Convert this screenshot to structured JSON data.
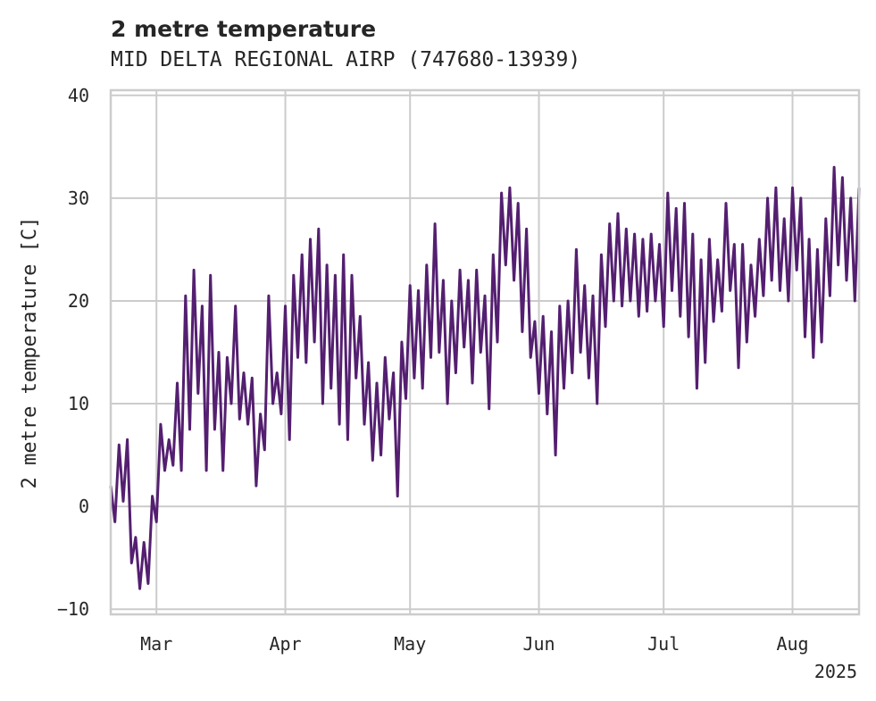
{
  "chart_data": {
    "type": "line",
    "title": "2 metre temperature",
    "subtitle": "MID DELTA REGIONAL AIRP (747680-13939)",
    "xlabel": "",
    "ylabel": "2 metre temperature [C]",
    "xlim": [
      "2025-02-18",
      "2025-08-17"
    ],
    "ylim": [
      -10.5,
      40.5
    ],
    "y_ticks": [
      -10,
      0,
      10,
      20,
      30,
      40
    ],
    "x_ticks": [
      {
        "date": "2025-03-01",
        "label": "Mar"
      },
      {
        "date": "2025-04-01",
        "label": "Apr"
      },
      {
        "date": "2025-05-01",
        "label": "May"
      },
      {
        "date": "2025-06-01",
        "label": "Jun"
      },
      {
        "date": "2025-07-01",
        "label": "Jul"
      },
      {
        "date": "2025-08-01",
        "label": "Aug"
      }
    ],
    "x_offset_label": "2025",
    "grid": true,
    "series": [
      {
        "color": "#541f70",
        "points": [
          [
            "2025-02-18",
            2
          ],
          [
            "2025-02-19",
            -1.5
          ],
          [
            "2025-02-20",
            6
          ],
          [
            "2025-02-21",
            0.5
          ],
          [
            "2025-02-22",
            6.5
          ],
          [
            "2025-02-23",
            -5.5
          ],
          [
            "2025-02-24",
            -3
          ],
          [
            "2025-02-25",
            -8
          ],
          [
            "2025-02-26",
            -3.5
          ],
          [
            "2025-02-27",
            -7.5
          ],
          [
            "2025-02-28",
            1
          ],
          [
            "2025-03-01",
            -1.5
          ],
          [
            "2025-03-02",
            8
          ],
          [
            "2025-03-03",
            3.5
          ],
          [
            "2025-03-04",
            6.5
          ],
          [
            "2025-03-05",
            4
          ],
          [
            "2025-03-06",
            12
          ],
          [
            "2025-03-07",
            3.5
          ],
          [
            "2025-03-08",
            20.5
          ],
          [
            "2025-03-09",
            7.5
          ],
          [
            "2025-03-10",
            23
          ],
          [
            "2025-03-11",
            11
          ],
          [
            "2025-03-12",
            19.5
          ],
          [
            "2025-03-13",
            3.5
          ],
          [
            "2025-03-14",
            22.5
          ],
          [
            "2025-03-15",
            7.5
          ],
          [
            "2025-03-16",
            15
          ],
          [
            "2025-03-17",
            3.5
          ],
          [
            "2025-03-18",
            14.5
          ],
          [
            "2025-03-19",
            10
          ],
          [
            "2025-03-20",
            19.5
          ],
          [
            "2025-03-21",
            8.5
          ],
          [
            "2025-03-22",
            13
          ],
          [
            "2025-03-23",
            8
          ],
          [
            "2025-03-24",
            12.5
          ],
          [
            "2025-03-25",
            2
          ],
          [
            "2025-03-26",
            9
          ],
          [
            "2025-03-27",
            5.5
          ],
          [
            "2025-03-28",
            20.5
          ],
          [
            "2025-03-29",
            10
          ],
          [
            "2025-03-30",
            13
          ],
          [
            "2025-03-31",
            9
          ],
          [
            "2025-04-01",
            19.5
          ],
          [
            "2025-04-02",
            6.5
          ],
          [
            "2025-04-03",
            22.5
          ],
          [
            "2025-04-04",
            14.5
          ],
          [
            "2025-04-05",
            24.5
          ],
          [
            "2025-04-06",
            14
          ],
          [
            "2025-04-07",
            26
          ],
          [
            "2025-04-08",
            16
          ],
          [
            "2025-04-09",
            27
          ],
          [
            "2025-04-10",
            10
          ],
          [
            "2025-04-11",
            23.5
          ],
          [
            "2025-04-12",
            11.5
          ],
          [
            "2025-04-13",
            22.5
          ],
          [
            "2025-04-14",
            8
          ],
          [
            "2025-04-15",
            24.5
          ],
          [
            "2025-04-16",
            6.5
          ],
          [
            "2025-04-17",
            22.5
          ],
          [
            "2025-04-18",
            12.5
          ],
          [
            "2025-04-19",
            18.5
          ],
          [
            "2025-04-20",
            8
          ],
          [
            "2025-04-21",
            14
          ],
          [
            "2025-04-22",
            4.5
          ],
          [
            "2025-04-23",
            12
          ],
          [
            "2025-04-24",
            5
          ],
          [
            "2025-04-25",
            14.5
          ],
          [
            "2025-04-26",
            8.5
          ],
          [
            "2025-04-27",
            13
          ],
          [
            "2025-04-28",
            1
          ],
          [
            "2025-04-29",
            16
          ],
          [
            "2025-04-30",
            10.5
          ],
          [
            "2025-05-01",
            21.5
          ],
          [
            "2025-05-02",
            12.5
          ],
          [
            "2025-05-03",
            21
          ],
          [
            "2025-05-04",
            11.5
          ],
          [
            "2025-05-05",
            23.5
          ],
          [
            "2025-05-06",
            14.5
          ],
          [
            "2025-05-07",
            27.5
          ],
          [
            "2025-05-08",
            15
          ],
          [
            "2025-05-09",
            22
          ],
          [
            "2025-05-10",
            10
          ],
          [
            "2025-05-11",
            20
          ],
          [
            "2025-05-12",
            13
          ],
          [
            "2025-05-13",
            23
          ],
          [
            "2025-05-14",
            15.5
          ],
          [
            "2025-05-15",
            22
          ],
          [
            "2025-05-16",
            12
          ],
          [
            "2025-05-17",
            23
          ],
          [
            "2025-05-18",
            15
          ],
          [
            "2025-05-19",
            20.5
          ],
          [
            "2025-05-20",
            9.5
          ],
          [
            "2025-05-21",
            24.5
          ],
          [
            "2025-05-22",
            16
          ],
          [
            "2025-05-23",
            30.5
          ],
          [
            "2025-05-24",
            23.5
          ],
          [
            "2025-05-25",
            31
          ],
          [
            "2025-05-26",
            22
          ],
          [
            "2025-05-27",
            29.5
          ],
          [
            "2025-05-28",
            17
          ],
          [
            "2025-05-29",
            27
          ],
          [
            "2025-05-30",
            14.5
          ],
          [
            "2025-05-31",
            18
          ],
          [
            "2025-06-01",
            11
          ],
          [
            "2025-06-02",
            18.5
          ],
          [
            "2025-06-03",
            9
          ],
          [
            "2025-06-04",
            17
          ],
          [
            "2025-06-05",
            5
          ],
          [
            "2025-06-06",
            19.5
          ],
          [
            "2025-06-07",
            11.5
          ],
          [
            "2025-06-08",
            20
          ],
          [
            "2025-06-09",
            13
          ],
          [
            "2025-06-10",
            25
          ],
          [
            "2025-06-11",
            15
          ],
          [
            "2025-06-12",
            21.5
          ],
          [
            "2025-06-13",
            12.5
          ],
          [
            "2025-06-14",
            20.5
          ],
          [
            "2025-06-15",
            10
          ],
          [
            "2025-06-16",
            24.5
          ],
          [
            "2025-06-17",
            17.5
          ],
          [
            "2025-06-18",
            27.5
          ],
          [
            "2025-06-19",
            20
          ],
          [
            "2025-06-20",
            28.5
          ],
          [
            "2025-06-21",
            19.5
          ],
          [
            "2025-06-22",
            27
          ],
          [
            "2025-06-23",
            20
          ],
          [
            "2025-06-24",
            26.5
          ],
          [
            "2025-06-25",
            18.5
          ],
          [
            "2025-06-26",
            26
          ],
          [
            "2025-06-27",
            19
          ],
          [
            "2025-06-28",
            26.5
          ],
          [
            "2025-06-29",
            20
          ],
          [
            "2025-06-30",
            25.5
          ],
          [
            "2025-07-01",
            17.5
          ],
          [
            "2025-07-02",
            30.5
          ],
          [
            "2025-07-03",
            21
          ],
          [
            "2025-07-04",
            29
          ],
          [
            "2025-07-05",
            18.5
          ],
          [
            "2025-07-06",
            29.5
          ],
          [
            "2025-07-07",
            16.5
          ],
          [
            "2025-07-08",
            26.5
          ],
          [
            "2025-07-09",
            11.5
          ],
          [
            "2025-07-10",
            24
          ],
          [
            "2025-07-11",
            14
          ],
          [
            "2025-07-12",
            26
          ],
          [
            "2025-07-13",
            18
          ],
          [
            "2025-07-14",
            24
          ],
          [
            "2025-07-15",
            19
          ],
          [
            "2025-07-16",
            29.5
          ],
          [
            "2025-07-17",
            21
          ],
          [
            "2025-07-18",
            25.5
          ],
          [
            "2025-07-19",
            13.5
          ],
          [
            "2025-07-20",
            25.5
          ],
          [
            "2025-07-21",
            16
          ],
          [
            "2025-07-22",
            23.5
          ],
          [
            "2025-07-23",
            18.5
          ],
          [
            "2025-07-24",
            26
          ],
          [
            "2025-07-25",
            20.5
          ],
          [
            "2025-07-26",
            30
          ],
          [
            "2025-07-27",
            22
          ],
          [
            "2025-07-28",
            31
          ],
          [
            "2025-07-29",
            21
          ],
          [
            "2025-07-30",
            28
          ],
          [
            "2025-07-31",
            20
          ],
          [
            "2025-08-01",
            31
          ],
          [
            "2025-08-02",
            23
          ],
          [
            "2025-08-03",
            30
          ],
          [
            "2025-08-04",
            16.5
          ],
          [
            "2025-08-05",
            26
          ],
          [
            "2025-08-06",
            14.5
          ],
          [
            "2025-08-07",
            25
          ],
          [
            "2025-08-08",
            16
          ],
          [
            "2025-08-09",
            28
          ],
          [
            "2025-08-10",
            20.5
          ],
          [
            "2025-08-11",
            33
          ],
          [
            "2025-08-12",
            23.5
          ],
          [
            "2025-08-13",
            32
          ],
          [
            "2025-08-14",
            22
          ],
          [
            "2025-08-15",
            30
          ],
          [
            "2025-08-16",
            20
          ],
          [
            "2025-08-17",
            31
          ]
        ]
      }
    ]
  }
}
